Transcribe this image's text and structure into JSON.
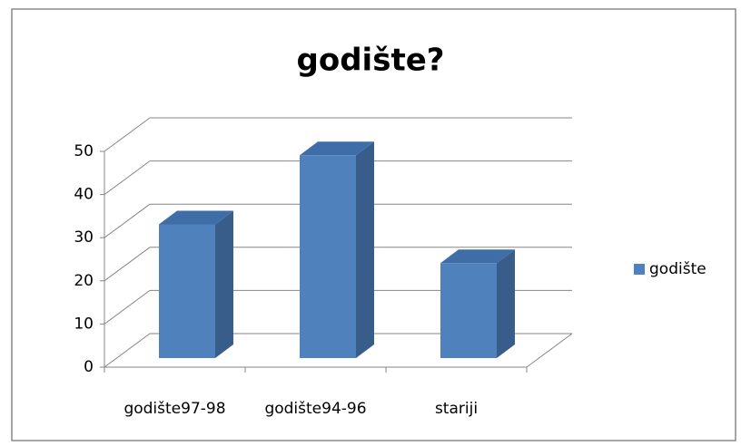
{
  "chart_data": {
    "type": "bar3d",
    "title": "godište?",
    "categories": [
      "godište97-98",
      "godište94-96",
      "stariji"
    ],
    "series": [
      {
        "name": "godište",
        "color": "#4f81bd",
        "values": [
          31,
          47,
          22
        ]
      }
    ],
    "ylim": [
      0,
      50
    ],
    "yticks": [
      0,
      10,
      20,
      30,
      40,
      50
    ],
    "grid": true,
    "legend": "right"
  }
}
